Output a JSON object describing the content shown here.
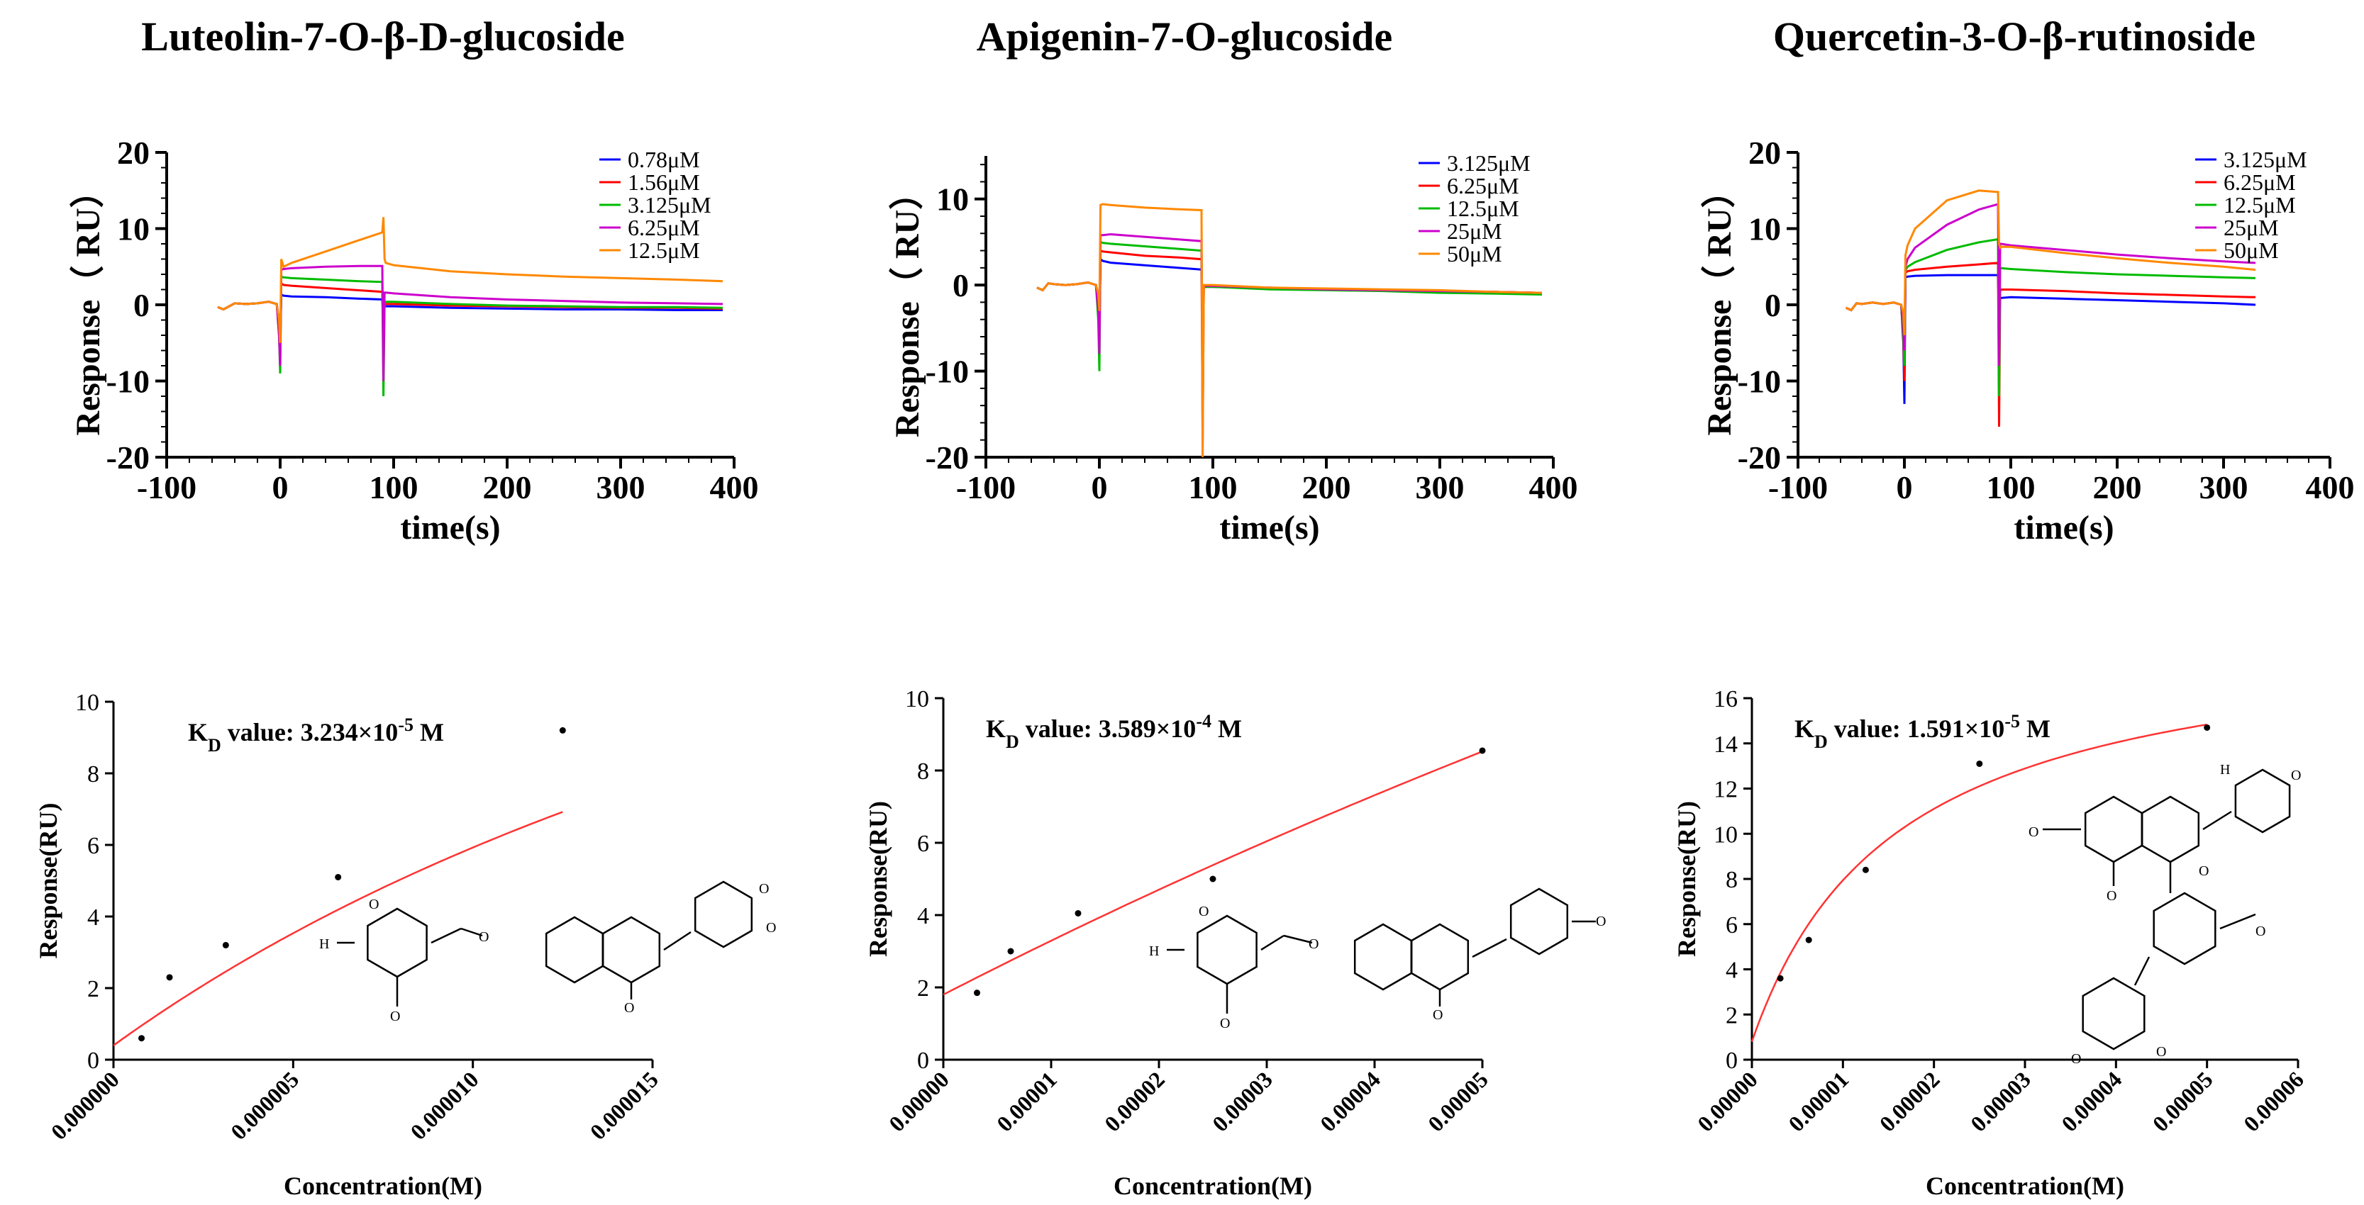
{
  "chart_data": [
    {
      "type": "line",
      "title": "Luteolin-7-O-β-D-glucoside",
      "xlabel": "time(s)",
      "ylabel": "Response（ RU）",
      "xlim": [
        -100,
        400
      ],
      "ylim": [
        -20,
        20
      ],
      "xticks": [
        -100,
        0,
        100,
        200,
        300,
        400
      ],
      "yticks": [
        -20,
        -10,
        0,
        10,
        20
      ],
      "legend_position": "top-right",
      "series": [
        {
          "name": "0.78μM",
          "color": "#0000ff",
          "x": [
            -55,
            -50,
            -40,
            -30,
            -20,
            -10,
            -3,
            -1,
            0,
            1,
            3,
            10,
            40,
            70,
            90,
            91,
            92,
            93,
            100,
            150,
            200,
            250,
            300,
            350,
            390
          ],
          "y": [
            -0.3,
            -0.6,
            0.2,
            0.1,
            0.2,
            0.4,
            0.1,
            -2,
            -5,
            1.3,
            1.2,
            1.1,
            1.0,
            0.8,
            0.7,
            -2,
            -0.2,
            -0.2,
            -0.2,
            -0.4,
            -0.5,
            -0.6,
            -0.6,
            -0.7,
            -0.7
          ]
        },
        {
          "name": "1.56μM",
          "color": "#ff0000",
          "x": [
            -55,
            -50,
            -40,
            -30,
            -20,
            -10,
            -3,
            -1,
            0,
            1,
            3,
            10,
            40,
            70,
            90,
            91,
            92,
            93,
            100,
            150,
            200,
            250,
            300,
            350,
            390
          ],
          "y": [
            -0.3,
            -0.6,
            0.2,
            0.1,
            0.2,
            0.4,
            0.1,
            -3,
            -7,
            2.8,
            2.6,
            2.5,
            2.2,
            1.9,
            1.7,
            -5,
            0.1,
            0.1,
            0.1,
            -0.1,
            -0.2,
            -0.3,
            -0.4,
            -0.4,
            -0.5
          ]
        },
        {
          "name": "3.125μM",
          "color": "#00bb00",
          "x": [
            -55,
            -50,
            -40,
            -30,
            -20,
            -10,
            -3,
            -1,
            0,
            1,
            3,
            10,
            40,
            70,
            90,
            91,
            92,
            93,
            100,
            150,
            200,
            250,
            300,
            350,
            390
          ],
          "y": [
            -0.3,
            -0.6,
            0.2,
            0.1,
            0.2,
            0.4,
            0.1,
            -4,
            -9,
            3.7,
            3.6,
            3.5,
            3.3,
            3.1,
            3.0,
            -12,
            0.4,
            0.4,
            0.4,
            0.1,
            -0.1,
            -0.2,
            -0.3,
            -0.3,
            -0.4
          ]
        },
        {
          "name": "6.25μM",
          "color": "#cc00cc",
          "x": [
            -55,
            -50,
            -40,
            -30,
            -20,
            -10,
            -3,
            -1,
            0,
            1,
            3,
            10,
            40,
            70,
            90,
            91,
            92,
            93,
            100,
            150,
            200,
            250,
            300,
            350,
            390
          ],
          "y": [
            -0.3,
            -0.6,
            0.2,
            0.1,
            0.2,
            0.4,
            0.1,
            -4,
            -8,
            4.6,
            4.7,
            4.8,
            5.0,
            5.1,
            5.1,
            -10,
            1.6,
            1.6,
            1.5,
            1.0,
            0.7,
            0.5,
            0.3,
            0.2,
            0.1
          ]
        },
        {
          "name": "12.5μM",
          "color": "#ff8800",
          "x": [
            -55,
            -50,
            -40,
            -30,
            -20,
            -10,
            -3,
            -1,
            0,
            1,
            3,
            10,
            40,
            70,
            90,
            91,
            92,
            93,
            100,
            150,
            200,
            250,
            300,
            350,
            390
          ],
          "y": [
            -0.3,
            -0.6,
            0.2,
            0.1,
            0.2,
            0.4,
            0.1,
            -2,
            -5,
            6.0,
            5.0,
            5.5,
            7.0,
            8.5,
            9.5,
            11.5,
            6.0,
            5.5,
            5.2,
            4.4,
            4.0,
            3.7,
            3.5,
            3.3,
            3.1
          ]
        }
      ]
    },
    {
      "type": "line",
      "title": "Apigenin-7-O-glucoside",
      "xlabel": "time(s)",
      "ylabel": "Response（ RU）",
      "xlim": [
        -100,
        400
      ],
      "ylim": [
        -20,
        15
      ],
      "xticks": [
        -100,
        0,
        100,
        200,
        300,
        400
      ],
      "yticks": [
        -20,
        -10,
        0,
        10
      ],
      "legend_position": "top-right",
      "series": [
        {
          "name": "3.125μM",
          "color": "#0000ff",
          "x": [
            -55,
            -50,
            -45,
            -40,
            -30,
            -20,
            -10,
            -3,
            -1,
            0,
            1,
            3,
            10,
            40,
            70,
            90,
            91,
            92,
            93,
            100,
            150,
            200,
            250,
            300,
            350,
            390
          ],
          "y": [
            -0.3,
            -0.6,
            0.2,
            0.1,
            0.0,
            0.1,
            0.3,
            0.0,
            -2,
            -5,
            3.0,
            2.8,
            2.6,
            2.3,
            2.0,
            1.8,
            -3,
            -0.3,
            -0.2,
            -0.2,
            -0.4,
            -0.5,
            -0.6,
            -0.7,
            -0.8,
            -0.9
          ]
        },
        {
          "name": "6.25μM",
          "color": "#ff0000",
          "x": [
            -55,
            -50,
            -45,
            -40,
            -30,
            -20,
            -10,
            -3,
            -1,
            0,
            1,
            3,
            10,
            40,
            70,
            90,
            91,
            92,
            93,
            100,
            150,
            200,
            250,
            300,
            350,
            390
          ],
          "y": [
            -0.3,
            -0.6,
            0.2,
            0.1,
            0.0,
            0.1,
            0.3,
            0.0,
            -3,
            -7,
            4.0,
            3.9,
            3.8,
            3.4,
            3.2,
            3.0,
            -18,
            -0.2,
            -0.2,
            -0.2,
            -0.4,
            -0.5,
            -0.6,
            -0.7,
            -0.8,
            -0.9
          ]
        },
        {
          "name": "12.5μM",
          "color": "#00bb00",
          "x": [
            -55,
            -50,
            -45,
            -40,
            -30,
            -20,
            -10,
            -3,
            -1,
            0,
            1,
            3,
            10,
            40,
            70,
            90,
            91,
            92,
            93,
            100,
            150,
            200,
            250,
            300,
            350,
            390
          ],
          "y": [
            -0.3,
            -0.6,
            0.2,
            0.1,
            0.0,
            0.1,
            0.3,
            0.0,
            -4,
            -10,
            5.0,
            4.9,
            4.8,
            4.5,
            4.2,
            4.0,
            -10,
            -0.2,
            -0.2,
            -0.2,
            -0.5,
            -0.6,
            -0.7,
            -0.9,
            -1.0,
            -1.1
          ]
        },
        {
          "name": "25μM",
          "color": "#cc00cc",
          "x": [
            -55,
            -50,
            -45,
            -40,
            -30,
            -20,
            -10,
            -3,
            -1,
            0,
            1,
            3,
            10,
            40,
            70,
            90,
            91,
            92,
            93,
            100,
            150,
            200,
            250,
            300,
            350,
            390
          ],
          "y": [
            -0.3,
            -0.6,
            0.2,
            0.1,
            0.0,
            0.1,
            0.3,
            0.0,
            -3,
            -8,
            5.8,
            5.8,
            5.9,
            5.6,
            5.3,
            5.1,
            -12,
            -0.1,
            -0.1,
            -0.1,
            -0.3,
            -0.5,
            -0.6,
            -0.7,
            -0.8,
            -0.9
          ]
        },
        {
          "name": "50μM",
          "color": "#ff8800",
          "x": [
            -55,
            -50,
            -45,
            -40,
            -30,
            -20,
            -10,
            -3,
            -1,
            0,
            1,
            3,
            10,
            40,
            70,
            90,
            91,
            92,
            93,
            100,
            150,
            200,
            250,
            300,
            350,
            390
          ],
          "y": [
            -0.3,
            -0.6,
            0.2,
            0.1,
            0.0,
            0.1,
            0.3,
            0.0,
            -1,
            -3,
            9.3,
            9.4,
            9.3,
            9.0,
            8.8,
            8.7,
            -20,
            0.0,
            0.0,
            0.0,
            -0.3,
            -0.4,
            -0.5,
            -0.6,
            -0.8,
            -0.9
          ]
        }
      ]
    },
    {
      "type": "line",
      "title": "Quercetin-3-O-β-rutinoside",
      "xlabel": "time(s)",
      "ylabel": "Response（ RU）",
      "xlim": [
        -100,
        400
      ],
      "ylim": [
        -20,
        20
      ],
      "xticks": [
        -100,
        0,
        100,
        200,
        300,
        400
      ],
      "yticks": [
        -20,
        -10,
        0,
        10,
        20
      ],
      "legend_position": "top-right",
      "series": [
        {
          "name": "3.125μM",
          "color": "#0000ff",
          "x": [
            -55,
            -50,
            -45,
            -40,
            -30,
            -20,
            -10,
            -3,
            -1,
            0,
            1,
            3,
            10,
            40,
            70,
            88,
            89,
            90,
            91,
            100,
            150,
            200,
            250,
            300,
            330
          ],
          "y": [
            -0.4,
            -0.7,
            0.2,
            0.1,
            0.3,
            0.1,
            0.3,
            0.0,
            -5,
            -13,
            3.6,
            3.7,
            3.8,
            3.9,
            3.9,
            3.9,
            -3,
            0.8,
            0.9,
            1.0,
            0.8,
            0.6,
            0.4,
            0.2,
            0.0
          ]
        },
        {
          "name": "6.25μM",
          "color": "#ff0000",
          "x": [
            -55,
            -50,
            -45,
            -40,
            -30,
            -20,
            -10,
            -3,
            -1,
            0,
            1,
            3,
            10,
            40,
            70,
            88,
            89,
            90,
            91,
            100,
            150,
            200,
            250,
            300,
            330
          ],
          "y": [
            -0.4,
            -0.7,
            0.2,
            0.1,
            0.3,
            0.1,
            0.3,
            0.0,
            -4,
            -10,
            4.2,
            4.4,
            4.6,
            5.0,
            5.3,
            5.5,
            -16,
            1.8,
            2.0,
            2.0,
            1.8,
            1.5,
            1.3,
            1.1,
            1.0
          ]
        },
        {
          "name": "12.5μM",
          "color": "#00bb00",
          "x": [
            -55,
            -50,
            -45,
            -40,
            -30,
            -20,
            -10,
            -3,
            -1,
            0,
            1,
            3,
            10,
            40,
            70,
            88,
            89,
            90,
            91,
            100,
            150,
            200,
            250,
            300,
            330
          ],
          "y": [
            -0.4,
            -0.7,
            0.2,
            0.1,
            0.3,
            0.1,
            0.3,
            0.0,
            -3,
            -8,
            4.5,
            5.0,
            5.6,
            7.2,
            8.2,
            8.6,
            -12,
            4.8,
            4.8,
            4.7,
            4.3,
            4.0,
            3.8,
            3.6,
            3.5
          ]
        },
        {
          "name": "25μM",
          "color": "#cc00cc",
          "x": [
            -55,
            -50,
            -45,
            -40,
            -30,
            -20,
            -10,
            -3,
            -1,
            0,
            1,
            3,
            10,
            40,
            70,
            88,
            89,
            90,
            91,
            100,
            150,
            200,
            250,
            300,
            330
          ],
          "y": [
            -0.4,
            -0.7,
            0.2,
            0.1,
            0.3,
            0.1,
            0.3,
            0.0,
            -2,
            -6,
            5.0,
            6.0,
            7.5,
            10.5,
            12.5,
            13.2,
            -8,
            8.0,
            8.0,
            7.8,
            7.2,
            6.6,
            6.1,
            5.7,
            5.5
          ]
        },
        {
          "name": "50μM",
          "color": "#ff8800",
          "x": [
            -55,
            -50,
            -45,
            -40,
            -30,
            -20,
            -10,
            -3,
            -1,
            0,
            1,
            3,
            10,
            40,
            70,
            88,
            89,
            90,
            91,
            100,
            150,
            200,
            250,
            300,
            330
          ],
          "y": [
            -0.4,
            -0.7,
            0.2,
            0.1,
            0.3,
            0.1,
            0.3,
            0.0,
            -1,
            -4,
            6.5,
            7.8,
            10.0,
            13.7,
            15.0,
            14.8,
            8,
            7.5,
            7.6,
            7.6,
            6.8,
            6.1,
            5.5,
            5.0,
            4.6
          ]
        }
      ]
    },
    {
      "type": "scatter",
      "title": "",
      "annotation": {
        "prefix": "K",
        "sub": "D",
        "mid": " value: 3.234×10",
        "sup": "-5",
        "suffix": " M"
      },
      "xlabel": "Concentration(M)",
      "ylabel": "Response(RU)",
      "xlim": [
        0,
        1.5e-05
      ],
      "ylim": [
        0,
        10
      ],
      "xticks": [
        "0.000000",
        "0.000005",
        "0.000010",
        "0.000015"
      ],
      "yticks": [
        0,
        2,
        4,
        6,
        8,
        10
      ],
      "points": {
        "x": [
          7.8e-07,
          1.56e-06,
          3.125e-06,
          6.25e-06,
          1.25e-05
        ],
        "y": [
          0.6,
          2.3,
          3.2,
          5.1,
          9.2
        ]
      },
      "fit": {
        "color": "#ff3333",
        "Rmax": 23.4,
        "KD": 3.234e-05,
        "offset": 0.4,
        "xmax": 1.25e-05
      }
    },
    {
      "type": "scatter",
      "title": "",
      "annotation": {
        "prefix": "K",
        "sub": "D",
        "mid": " value: 3.589×10",
        "sup": "-4",
        "suffix": " M"
      },
      "xlabel": "Concentration(M)",
      "ylabel": "Response(RU)",
      "xlim": [
        0,
        5e-05
      ],
      "ylim": [
        0,
        10
      ],
      "xticks": [
        "0.00000",
        "0.00001",
        "0.00002",
        "0.00003",
        "0.00004",
        "0.00005"
      ],
      "yticks": [
        0,
        2,
        4,
        6,
        8,
        10
      ],
      "points": {
        "x": [
          3.125e-06,
          6.25e-06,
          1.25e-05,
          2.5e-05,
          5e-05
        ],
        "y": [
          1.85,
          3.0,
          4.05,
          5.0,
          8.55
        ]
      },
      "fit": {
        "color": "#ff3333",
        "Rmax": 55.0,
        "KD": 0.0003589,
        "offset": 1.8,
        "xmax": 5e-05
      }
    },
    {
      "type": "scatter",
      "title": "",
      "annotation": {
        "prefix": "K",
        "sub": "D",
        "mid": " value: 1.591×10",
        "sup": "-5",
        "suffix": " M"
      },
      "xlabel": "Concentration(M)",
      "ylabel": "Response(RU)",
      "xlim": [
        0,
        6e-05
      ],
      "ylim": [
        0,
        16
      ],
      "xticks": [
        "0.00000",
        "0.00001",
        "0.00002",
        "0.00003",
        "0.00004",
        "0.00005",
        "0.00006"
      ],
      "yticks": [
        0,
        2,
        4,
        6,
        8,
        10,
        12,
        14,
        16
      ],
      "points": {
        "x": [
          3.125e-06,
          6.25e-06,
          1.25e-05,
          2.5e-05,
          5e-05
        ],
        "y": [
          3.6,
          5.3,
          8.4,
          13.1,
          14.7
        ]
      },
      "fit": {
        "color": "#ff3333",
        "Rmax": 18.5,
        "KD": 1.591e-05,
        "offset": 0.8,
        "xmax": 5e-05
      }
    }
  ]
}
